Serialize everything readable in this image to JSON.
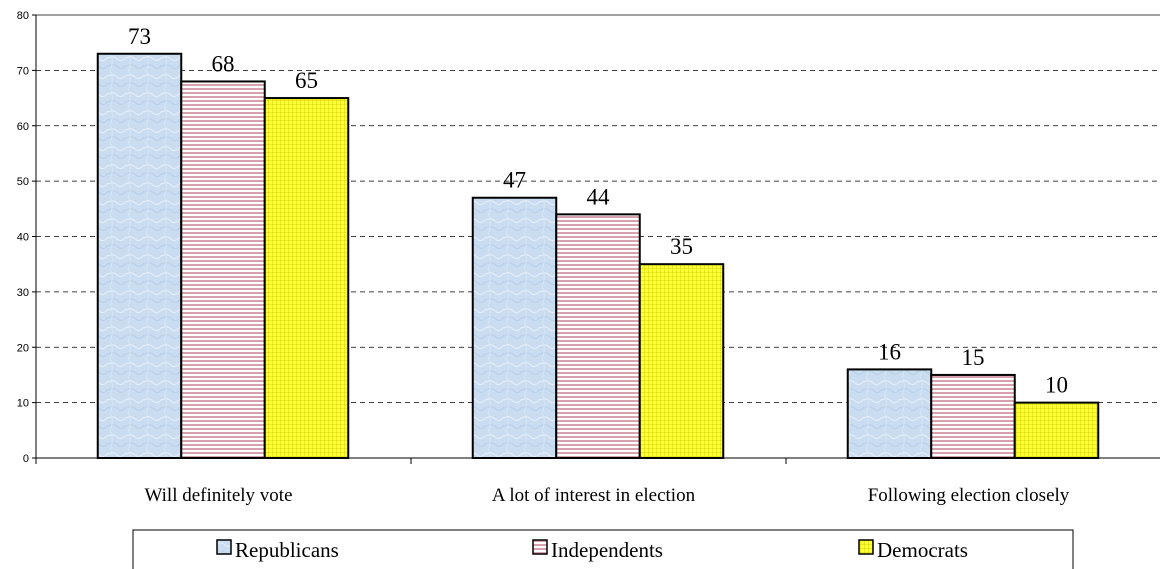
{
  "chart_data": {
    "type": "bar",
    "categories": [
      "Will definitely vote",
      "A lot of interest in election",
      "Following election closely"
    ],
    "series": [
      {
        "name": "Republicans",
        "values": [
          73,
          47,
          16
        ],
        "color": "#c9dcf0",
        "pattern": "mottled"
      },
      {
        "name": "Independents",
        "values": [
          68,
          44,
          15
        ],
        "color": "#f4d6dc",
        "pattern": "horizontal-lines"
      },
      {
        "name": "Democrats",
        "values": [
          65,
          35,
          10
        ],
        "color": "#ffff33",
        "pattern": "grid"
      }
    ],
    "yticks": [
      "0",
      "10",
      "20",
      "30",
      "40",
      "50",
      "60",
      "70",
      "80"
    ],
    "ylim": [
      0,
      80
    ],
    "grid": "dashed-horizontal",
    "legend_position": "bottom"
  }
}
